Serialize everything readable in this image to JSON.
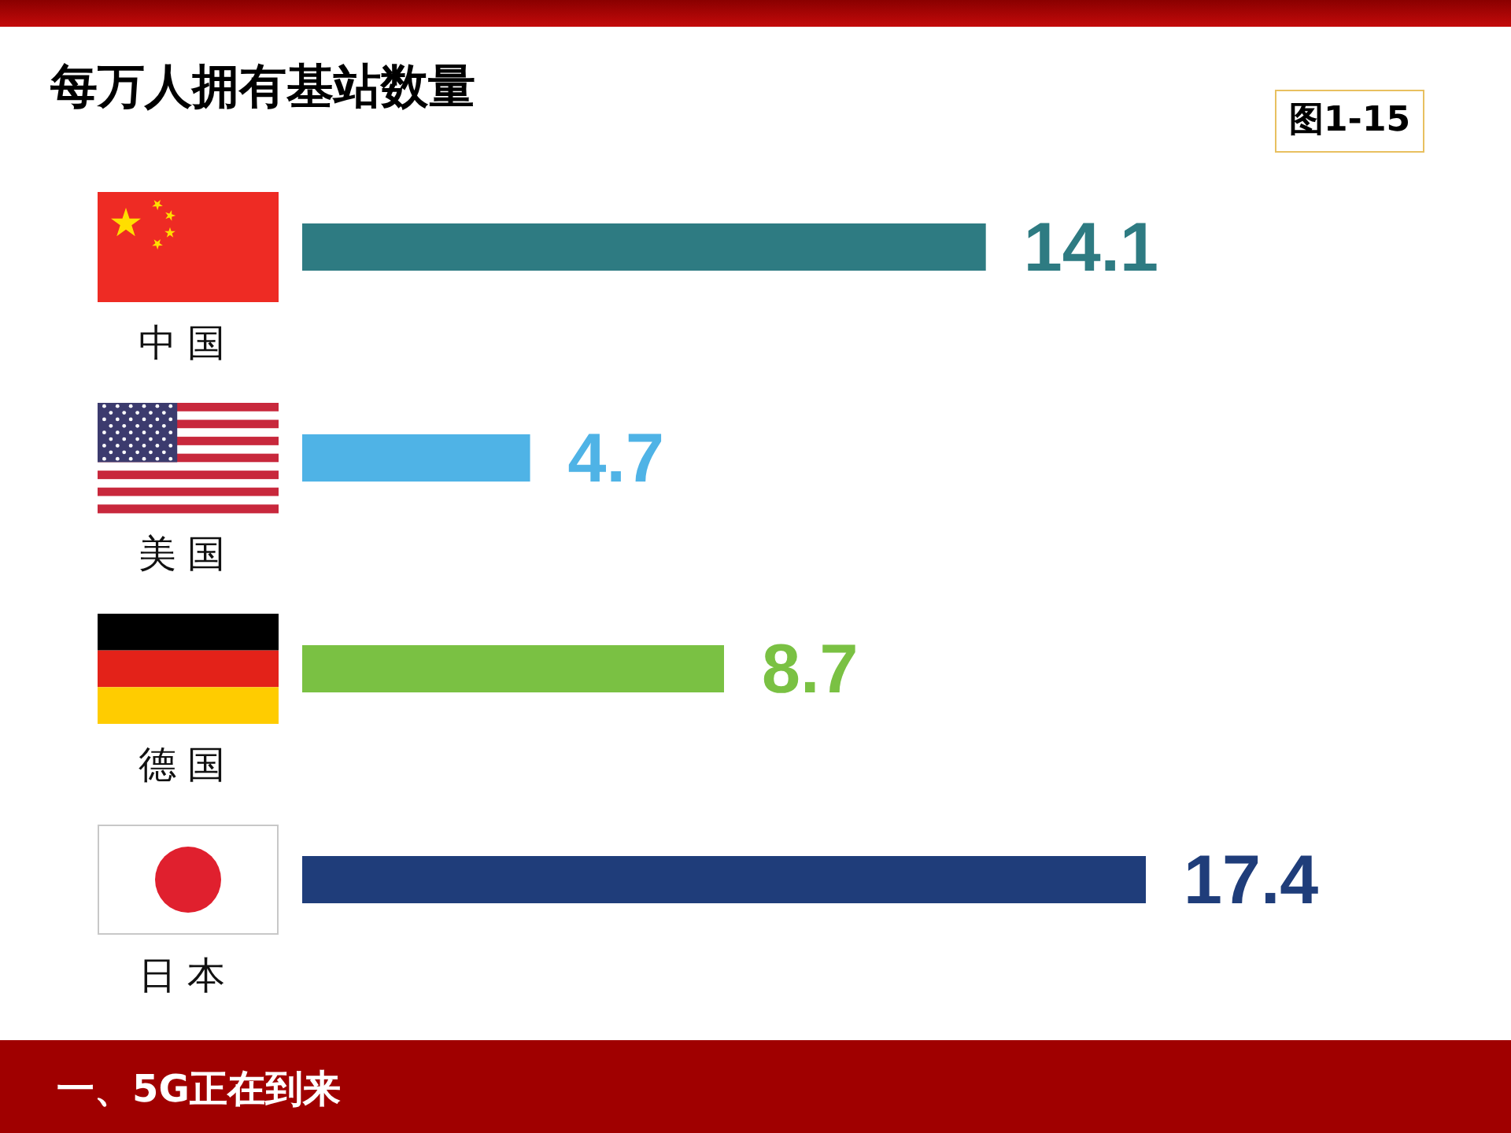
{
  "chart_data": {
    "type": "bar",
    "orientation": "horizontal",
    "title": "每万人拥有基站数量",
    "categories": [
      "中国",
      "美国",
      "德国",
      "日本"
    ],
    "values": [
      14.1,
      4.7,
      8.7,
      17.4
    ],
    "colors": [
      "#2e7b82",
      "#4fb3e6",
      "#7ac143",
      "#1f3d7a"
    ],
    "data_labels": true,
    "tick_labels": "y",
    "annotations": [
      "图1-15",
      "一、5G正在到来"
    ]
  }
}
